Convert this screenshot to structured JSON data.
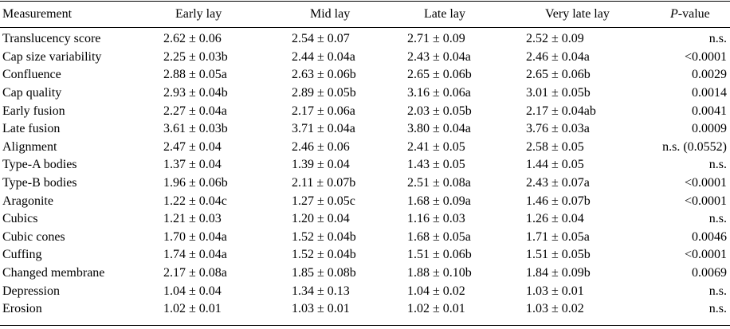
{
  "table": {
    "headers": {
      "measurement": "Measurement",
      "early": "Early lay",
      "mid": "Mid lay",
      "late": "Late lay",
      "very_late": "Very late lay",
      "pvalue_italic": "P",
      "pvalue_rest": "-value"
    },
    "rows": [
      {
        "label": "Translucency score",
        "early": "2.62 ± 0.06",
        "mid": "2.54 ± 0.07",
        "late": "2.71 ± 0.09",
        "very_late": "2.52 ± 0.09",
        "p": "n.s."
      },
      {
        "label": "Cap size variability",
        "early": "2.25 ± 0.03b",
        "mid": "2.44 ± 0.04a",
        "late": "2.43 ± 0.04a",
        "very_late": "2.46 ± 0.04a",
        "p": "<0.0001"
      },
      {
        "label": "Confluence",
        "early": "2.88 ± 0.05a",
        "mid": "2.63 ± 0.06b",
        "late": "2.65 ± 0.06b",
        "very_late": "2.65 ± 0.06b",
        "p": "0.0029"
      },
      {
        "label": "Cap quality",
        "early": "2.93 ± 0.04b",
        "mid": "2.89 ± 0.05b",
        "late": "3.16 ± 0.06a",
        "very_late": "3.01 ± 0.05b",
        "p": "0.0014"
      },
      {
        "label": "Early fusion",
        "early": "2.27 ± 0.04a",
        "mid": "2.17 ± 0.06a",
        "late": "2.03 ± 0.05b",
        "very_late": "2.17 ± 0.04ab",
        "p": "0.0041"
      },
      {
        "label": "Late fusion",
        "early": "3.61 ± 0.03b",
        "mid": "3.71 ± 0.04a",
        "late": "3.80 ± 0.04a",
        "very_late": "3.76 ± 0.03a",
        "p": "0.0009"
      },
      {
        "label": "Alignment",
        "early": "2.47 ± 0.04",
        "mid": "2.46 ± 0.06",
        "late": "2.41 ± 0.05",
        "very_late": "2.58 ± 0.05",
        "p": "n.s. (0.0552)"
      },
      {
        "label": "Type-A bodies",
        "early": "1.37 ± 0.04",
        "mid": "1.39 ± 0.04",
        "late": "1.43 ± 0.05",
        "very_late": "1.44 ± 0.05",
        "p": "n.s."
      },
      {
        "label": "Type-B bodies",
        "early": "1.96 ± 0.06b",
        "mid": "2.11 ± 0.07b",
        "late": "2.51 ± 0.08a",
        "very_late": "2.43 ± 0.07a",
        "p": "<0.0001"
      },
      {
        "label": "Aragonite",
        "early": "1.22 ± 0.04c",
        "mid": "1.27 ± 0.05c",
        "late": "1.68 ± 0.09a",
        "very_late": "1.46 ± 0.07b",
        "p": "<0.0001"
      },
      {
        "label": "Cubics",
        "early": "1.21 ± 0.03",
        "mid": "1.20 ± 0.04",
        "late": "1.16 ± 0.03",
        "very_late": "1.26 ± 0.04",
        "p": "n.s."
      },
      {
        "label": "Cubic cones",
        "early": "1.70 ± 0.04a",
        "mid": "1.52 ± 0.04b",
        "late": "1.68 ± 0.05a",
        "very_late": "1.71 ± 0.05a",
        "p": "0.0046"
      },
      {
        "label": "Cuffing",
        "early": "1.74 ± 0.04a",
        "mid": "1.52 ± 0.04b",
        "late": "1.51 ± 0.06b",
        "very_late": "1.51 ± 0.05b",
        "p": "<0.0001"
      },
      {
        "label": "Changed membrane",
        "early": "2.17 ± 0.08a",
        "mid": "1.85 ± 0.08b",
        "late": "1.88 ± 0.10b",
        "very_late": "1.84 ± 0.09b",
        "p": "0.0069"
      },
      {
        "label": "Depression",
        "early": "1.04 ± 0.04",
        "mid": "1.34 ± 0.13",
        "late": "1.04 ± 0.02",
        "very_late": "1.03 ± 0.01",
        "p": "n.s."
      },
      {
        "label": "Erosion",
        "early": "1.02 ± 0.01",
        "mid": "1.03 ± 0.01",
        "late": "1.02 ± 0.01",
        "very_late": "1.03 ± 0.02",
        "p": "n.s."
      }
    ]
  }
}
